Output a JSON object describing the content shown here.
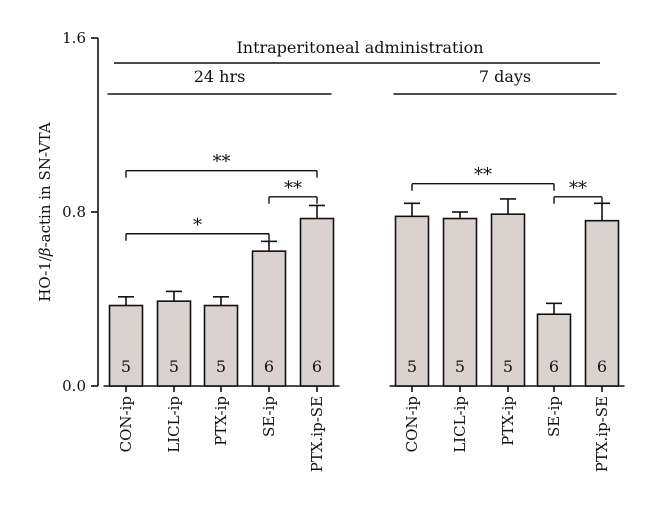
{
  "chart_data": {
    "type": "bar",
    "ylabel_prefix": "HO-1/",
    "ylabel_beta": "β",
    "ylabel_suffix": "-actin in SN-VTA",
    "ylim": [
      0,
      1.6
    ],
    "yticks": [
      "0.0",
      "0.8",
      "1.6"
    ],
    "grid": false,
    "top_label": "Intraperitoneal administration",
    "groups": [
      {
        "label": "24 hrs",
        "bars": [
          {
            "category": "CON-ip",
            "value": 0.37,
            "error": 0.04,
            "n": "5"
          },
          {
            "category": "LICL-ip",
            "value": 0.39,
            "error": 0.045,
            "n": "5"
          },
          {
            "category": "PTX-ip",
            "value": 0.37,
            "error": 0.04,
            "n": "5"
          },
          {
            "category": "SE-ip",
            "value": 0.62,
            "error": 0.045,
            "n": "6"
          },
          {
            "category": "PTX.ip-SE",
            "value": 0.77,
            "error": 0.06,
            "n": "6"
          }
        ]
      },
      {
        "label": "7 days",
        "bars": [
          {
            "category": "CON-ip",
            "value": 0.78,
            "error": 0.06,
            "n": "5"
          },
          {
            "category": "LICL-ip",
            "value": 0.77,
            "error": 0.03,
            "n": "5"
          },
          {
            "category": "PTX-ip",
            "value": 0.79,
            "error": 0.07,
            "n": "5"
          },
          {
            "category": "SE-ip",
            "value": 0.33,
            "error": 0.05,
            "n": "6"
          },
          {
            "category": "PTX.ip-SE",
            "value": 0.76,
            "error": 0.08,
            "n": "6"
          }
        ]
      }
    ],
    "significance": [
      {
        "group": 0,
        "from": 0,
        "to": 4,
        "label": "**",
        "y": 0.99
      },
      {
        "group": 0,
        "from": 0,
        "to": 3,
        "label": "*",
        "y": 0.7
      },
      {
        "group": 0,
        "from": 3,
        "to": 4,
        "label": "**",
        "y": 0.87
      },
      {
        "group": 1,
        "from": 0,
        "to": 3,
        "label": "**",
        "y": 0.93
      },
      {
        "group": 1,
        "from": 3,
        "to": 4,
        "label": "**",
        "y": 0.87
      }
    ],
    "colors": {
      "bar_fill": "#d9d2cf",
      "stroke": "#111111"
    }
  }
}
